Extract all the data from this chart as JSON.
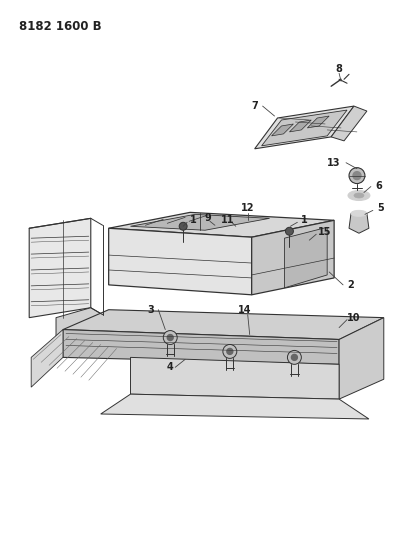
{
  "title": "8182 1600 B",
  "bg_color": "#ffffff",
  "line_color": "#333333",
  "title_fontsize": 8.5,
  "label_fontsize": 7,
  "fig_width": 4.11,
  "fig_height": 5.33,
  "dpi": 100
}
